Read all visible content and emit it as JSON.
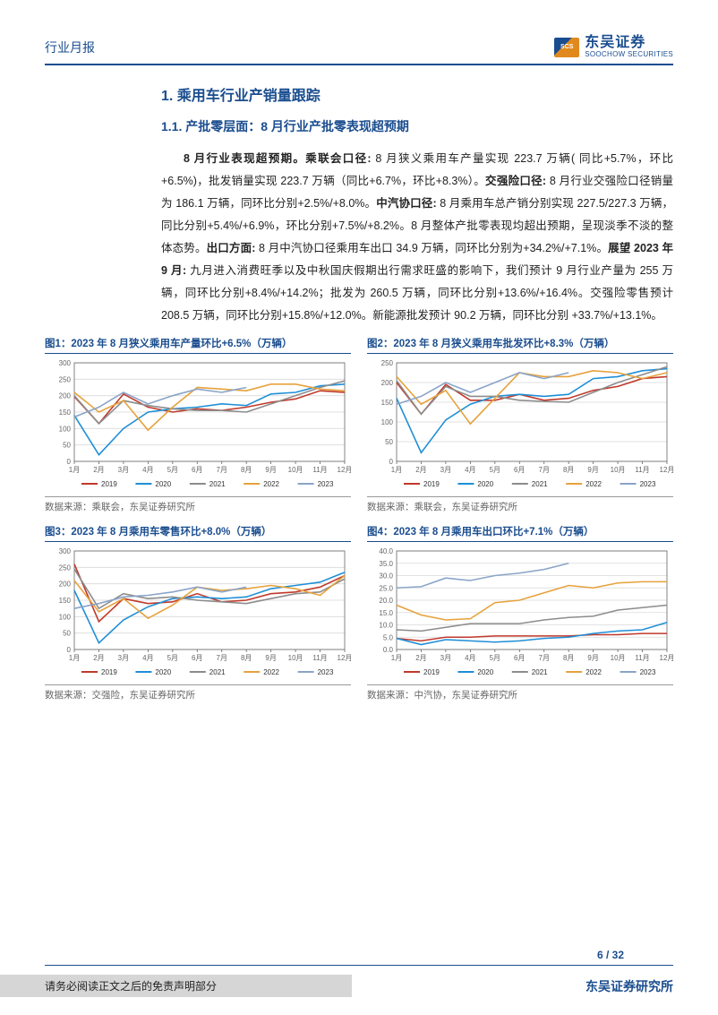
{
  "header": {
    "title": "行业月报",
    "logo_cn": "东吴证券",
    "logo_en": "SOOCHOW SECURITIES",
    "logo_mark": "SCS"
  },
  "section": {
    "h1": "1.  乘用车行业产销量跟踪",
    "h2": "1.1.  产批零层面：8 月行业产批零表现超预期",
    "body": "<b>8 月行业表现超预期。乘联会口径:</b> 8 月狭义乘用车产量实现 223.7 万辆( 同比+5.7%，环比+6.5%)，批发销量实现 223.7 万辆（同比+6.7%，环比+8.3%）。<b>交强险口径:</b> 8 月行业交强险口径销量为 186.1 万辆，同环比分别+2.5%/+8.0%。<b>中汽协口径:</b> 8 月乘用车总产销分别实现 227.5/227.3 万辆，同比分别+5.4%/+6.9%，环比分别+7.5%/+8.2%。8 月整体产批零表现均超出预期，呈现淡季不淡的整体态势。<b>出口方面:</b> 8 月中汽协口径乘用车出口 34.9 万辆，同环比分别为+34.2%/+7.1%。<b>展望 2023 年 9 月:</b> 九月进入消费旺季以及中秋国庆假期出行需求旺盛的影响下，我们预计 9 月行业产量为 255 万辆，同环比分别+8.4%/+14.2%；批发为 260.5 万辆，同环比分别+13.6%/+16.4%。交强险零售预计 208.5 万辆，同环比分别+15.8%/+12.0%。新能源批发预计 90.2 万辆，同环比分别 +33.7%/+13.1%。"
  },
  "chart_common": {
    "months": [
      "1月",
      "2月",
      "3月",
      "4月",
      "5月",
      "6月",
      "7月",
      "8月",
      "9月",
      "10月",
      "11月",
      "12月"
    ],
    "legend_years": [
      "2019",
      "2020",
      "2021",
      "2022",
      "2023"
    ],
    "colors": {
      "2019": "#c0392b",
      "2020": "#1f8fd6",
      "2021": "#8c8c8c",
      "2022": "#e6a23c",
      "2023": "#8aa4c8"
    },
    "grid_color": "#d9d9d9",
    "axis_color": "#666666",
    "tick_fontsize": 8,
    "background_color": "#ffffff",
    "line_width": 1.6
  },
  "charts": [
    {
      "id": "chart1",
      "title": "图1：2023 年 8 月狭义乘用车产量环比+6.5%（万辆）",
      "type": "line",
      "ylim": [
        0,
        300
      ],
      "ytick_step": 50,
      "series": {
        "2019": [
          197,
          115,
          205,
          165,
          150,
          160,
          155,
          165,
          180,
          190,
          215,
          210
        ],
        "2020": [
          140,
          20,
          100,
          150,
          160,
          165,
          175,
          170,
          205,
          210,
          230,
          235
        ],
        "2021": [
          200,
          115,
          185,
          170,
          160,
          155,
          155,
          150,
          175,
          200,
          225,
          245
        ],
        "2022": [
          210,
          150,
          185,
          95,
          165,
          225,
          220,
          215,
          235,
          235,
          220,
          215
        ],
        "2023": [
          135,
          165,
          210,
          175,
          200,
          220,
          210,
          225,
          null,
          null,
          null,
          null
        ]
      },
      "source": "数据来源：乘联会，东吴证券研究所"
    },
    {
      "id": "chart2",
      "title": "图2：2023 年 8 月狭义乘用车批发环比+8.3%（万辆）",
      "type": "line",
      "ylim": [
        0,
        250
      ],
      "ytick_step": 50,
      "series": {
        "2019": [
          200,
          120,
          195,
          155,
          155,
          170,
          155,
          160,
          180,
          190,
          210,
          215
        ],
        "2020": [
          160,
          22,
          105,
          145,
          165,
          170,
          165,
          170,
          210,
          215,
          230,
          235
        ],
        "2021": [
          205,
          120,
          190,
          165,
          165,
          155,
          152,
          150,
          175,
          200,
          220,
          240
        ],
        "2022": [
          215,
          145,
          180,
          95,
          160,
          225,
          215,
          215,
          230,
          225,
          210,
          225
        ],
        "2023": [
          145,
          165,
          200,
          175,
          200,
          225,
          210,
          225,
          null,
          null,
          null,
          null
        ]
      },
      "source": "数据来源：乘联会，东吴证券研究所"
    },
    {
      "id": "chart3",
      "title": "图3：2023 年 8 月乘用车零售环比+8.0%（万辆）",
      "type": "line",
      "ylim": [
        0,
        300
      ],
      "ytick_step": 50,
      "series": {
        "2019": [
          260,
          85,
          155,
          140,
          145,
          170,
          145,
          150,
          170,
          175,
          190,
          225
        ],
        "2020": [
          180,
          20,
          90,
          130,
          155,
          160,
          155,
          160,
          185,
          195,
          205,
          235
        ],
        "2021": [
          245,
          125,
          170,
          155,
          160,
          150,
          145,
          140,
          155,
          170,
          175,
          215
        ],
        "2022": [
          210,
          115,
          155,
          95,
          135,
          190,
          180,
          185,
          195,
          185,
          165,
          225
        ],
        "2023": [
          125,
          140,
          160,
          165,
          175,
          190,
          175,
          190,
          null,
          null,
          null,
          null
        ]
      },
      "source": "数据来源：交强险，东吴证券研究所"
    },
    {
      "id": "chart4",
      "title": "图4：2023 年 8 月乘用车出口环比+7.1%（万辆）",
      "type": "line",
      "ylim": [
        0,
        40
      ],
      "ytick_step": 5,
      "y_decimals": 1,
      "series": {
        "2019": [
          4.5,
          3.5,
          5.0,
          5.0,
          5.5,
          5.5,
          5.5,
          5.5,
          6.0,
          6.0,
          6.5,
          6.5
        ],
        "2020": [
          4.5,
          2.0,
          4.0,
          3.5,
          3.0,
          3.5,
          4.5,
          5.0,
          6.5,
          7.5,
          8.0,
          11.0
        ],
        "2021": [
          8.0,
          7.5,
          9.0,
          10.5,
          10.5,
          10.5,
          12.0,
          13.0,
          13.5,
          16.0,
          17.0,
          18.0
        ],
        "2022": [
          18.0,
          14.0,
          12.0,
          12.5,
          19.0,
          20.0,
          23.0,
          26.0,
          25.0,
          27.0,
          27.5,
          27.5
        ],
        "2023": [
          25.0,
          25.5,
          29.0,
          28.0,
          30.0,
          31.0,
          32.5,
          35.0,
          null,
          null,
          null,
          null
        ]
      },
      "source": "数据来源：中汽协，东吴证券研究所"
    }
  ],
  "footer": {
    "page": "6 / 32",
    "disclaimer": "请务必阅读正文之后的免责声明部分",
    "org": "东吴证券研究所"
  }
}
